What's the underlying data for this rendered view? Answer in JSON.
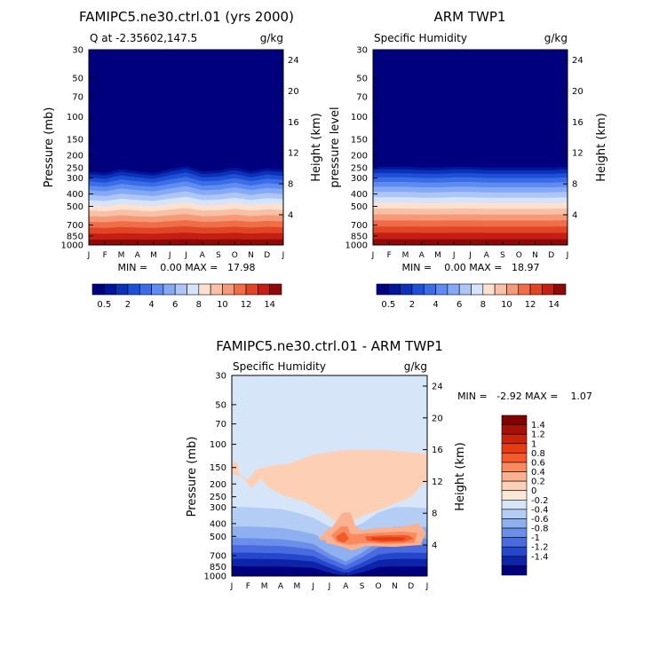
{
  "chart_data": [
    {
      "type": "heatmap",
      "title": "FAMIPC5.ne30.ctrl.01 (yrs 2000)",
      "subtitle_left": "Q at -2.35602,147.5",
      "units": "g/kg",
      "ylabel_left": "Pressure (mb)",
      "ylabel_right": "Height (km)",
      "x_ticks": [
        "J",
        "F",
        "M",
        "A",
        "M",
        "J",
        "J",
        "A",
        "S",
        "O",
        "N",
        "D",
        "J"
      ],
      "p_ticks": [
        "30",
        "50",
        "70",
        "100",
        "150",
        "200",
        "250",
        "300",
        "400",
        "500",
        "700",
        "850",
        "1000"
      ],
      "p_values": [
        30,
        50,
        70,
        100,
        150,
        200,
        250,
        300,
        400,
        500,
        700,
        850,
        1000
      ],
      "z_ticks": [
        "24",
        "20",
        "16",
        "12",
        "8",
        "4"
      ],
      "z_values": [
        24,
        20,
        16,
        12,
        8,
        4
      ],
      "stats": "MIN =    0.00 MAX =   17.98",
      "min": 0.0,
      "max": 17.98,
      "moisture_top_km": [
        9.6,
        9.4,
        9.9,
        9.6,
        9.4,
        9.9,
        10.3,
        9.6,
        9.7,
        10.1,
        9.6,
        10.0,
        9.8
      ]
    },
    {
      "type": "heatmap",
      "title": "ARM TWP1",
      "subtitle_left": "Specific Humidity",
      "units": "g/kg",
      "ylabel_left": "pressure level",
      "ylabel_right": "Height (km)",
      "x_ticks": [
        "J",
        "F",
        "M",
        "A",
        "M",
        "J",
        "J",
        "A",
        "S",
        "O",
        "N",
        "D",
        "J"
      ],
      "p_ticks": [
        "30",
        "50",
        "70",
        "100",
        "150",
        "200",
        "250",
        "300",
        "400",
        "500",
        "700",
        "850",
        "1000"
      ],
      "p_values": [
        30,
        50,
        70,
        100,
        150,
        200,
        250,
        300,
        400,
        500,
        700,
        850,
        1000
      ],
      "z_ticks": [
        "24",
        "20",
        "16",
        "12",
        "8",
        "4"
      ],
      "z_values": [
        24,
        20,
        16,
        12,
        8,
        4
      ],
      "stats": "MIN =    0.00 MAX =   18.97",
      "min": 0.0,
      "max": 18.97,
      "moisture_top_km": [
        10.2,
        10.2,
        10.2,
        10.1,
        10.1,
        10.2,
        10.2,
        10.1,
        10.1,
        10.1,
        10.1,
        10.1,
        10.2
      ]
    },
    {
      "type": "heatmap",
      "title": "FAMIPC5.ne30.ctrl.01 - ARM TWP1",
      "subtitle_left": "Specific Humidity",
      "units": "g/kg",
      "ylabel_left": "Pressure (mb)",
      "ylabel_right": "Height (km)",
      "x_ticks": [
        "J",
        "F",
        "M",
        "A",
        "M",
        "J",
        "J",
        "A",
        "S",
        "O",
        "N",
        "D",
        "J"
      ],
      "p_ticks": [
        "30",
        "50",
        "70",
        "100",
        "150",
        "200",
        "250",
        "300",
        "400",
        "500",
        "700",
        "850",
        "1000"
      ],
      "p_values": [
        30,
        50,
        70,
        100,
        150,
        200,
        250,
        300,
        400,
        500,
        700,
        850,
        1000
      ],
      "z_ticks": [
        "24",
        "20",
        "16",
        "12",
        "8",
        "4"
      ],
      "z_values": [
        24,
        20,
        16,
        12,
        8,
        4
      ],
      "stats": "MIN =   -2.92 MAX =    1.07",
      "min": -2.92,
      "max": 1.07
    }
  ],
  "colorbar_top": {
    "labels": [
      "0.5",
      "2",
      "4",
      "6",
      "8",
      "10",
      "12",
      "14"
    ],
    "colors": [
      "#00007f",
      "#00169a",
      "#0a32b8",
      "#1f4fd6",
      "#3d6de6",
      "#5f8cf0",
      "#85a9f4",
      "#aec6f6",
      "#d6e4fb",
      "#fde0cf",
      "#f9c0a5",
      "#f59a78",
      "#ef6e48",
      "#e24426",
      "#c51e12",
      "#8c0a0a"
    ]
  },
  "colorbar_diff": {
    "labels": [
      "1.4",
      "1.2",
      "1",
      "0.8",
      "0.6",
      "0.4",
      "0.2",
      "0",
      "-0.2",
      "-0.4",
      "-0.6",
      "-0.8",
      "-1",
      "-1.2",
      "-1.4"
    ],
    "colors": [
      "#800000",
      "#a31205",
      "#c8260c",
      "#e63c14",
      "#f65a2a",
      "#f98a5d",
      "#fbb08f",
      "#fdd0b5",
      "#fde8d6",
      "#d6e6f8",
      "#b3cdf4",
      "#8eb0f0",
      "#6a8ee9",
      "#4a6be0",
      "#2547cc",
      "#0d24a8",
      "#00007f"
    ]
  }
}
